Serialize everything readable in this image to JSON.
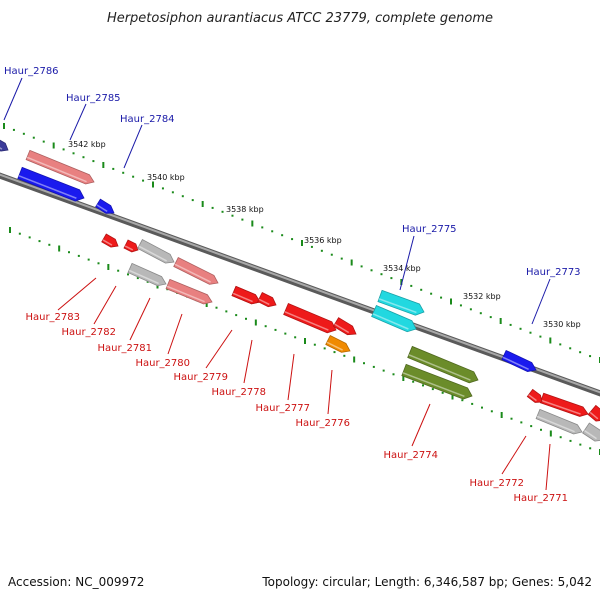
{
  "title": "Herpetosiphon aurantiacus ATCC 23779, complete genome",
  "footer": {
    "accession": "Accession: NC_009972",
    "summary": "Topology: circular; Length: 6,346,587 bp; Genes: 5,042"
  },
  "axis_ticks": [
    {
      "label": "3542 kbp",
      "kbp": 3542
    },
    {
      "label": "3540 kbp",
      "kbp": 3540
    },
    {
      "label": "3538 kbp",
      "kbp": 3538
    },
    {
      "label": "3536 kbp",
      "kbp": 3536
    },
    {
      "label": "3534 kbp",
      "kbp": 3534
    },
    {
      "label": "3532 kbp",
      "kbp": 3532
    },
    {
      "label": "3530 kbp",
      "kbp": 3530
    }
  ],
  "genes": [
    {
      "name": "Haur_2786",
      "strand": "+",
      "color": "#3b3b9a"
    },
    {
      "name": "Haur_2785",
      "strand": "+",
      "color": "#e88080"
    },
    {
      "name": "Haur_2784",
      "strand": "+",
      "color": "#1a1aee"
    },
    {
      "name": "Haur_2783",
      "strand": "-",
      "color": "#ee1a1a"
    },
    {
      "name": "Haur_2782",
      "strand": "-",
      "color": "#ee1a1a"
    },
    {
      "name": "Haur_2781",
      "strand": "-",
      "color": "#b8b8b8"
    },
    {
      "name": "Haur_2780",
      "strand": "-",
      "color": "#e88080"
    },
    {
      "name": "Haur_2779",
      "strand": "-",
      "color": "#ee1a1a"
    },
    {
      "name": "Haur_2778",
      "strand": "-",
      "color": "#ee1a1a"
    },
    {
      "name": "Haur_2777",
      "strand": "-",
      "color": "#ee1a1a"
    },
    {
      "name": "Haur_2776",
      "strand": "-",
      "color": "#f08a00"
    },
    {
      "name": "Haur_2775",
      "strand": "+",
      "color": "#22d8e0"
    },
    {
      "name": "Haur_2774",
      "strand": "-",
      "color": "#6b8c2a"
    },
    {
      "name": "Haur_2773",
      "strand": "+",
      "color": "#1a1aee"
    },
    {
      "name": "Haur_2772",
      "strand": "-",
      "color": "#ee1a1a"
    },
    {
      "name": "Haur_2771",
      "strand": "-",
      "color": "#b8b8b8"
    }
  ],
  "colors": {
    "forward_label": "#1a1aa8",
    "reverse_label": "#cc1111",
    "backbone": "#8a8a8a",
    "tick": "#1a8a1a"
  }
}
